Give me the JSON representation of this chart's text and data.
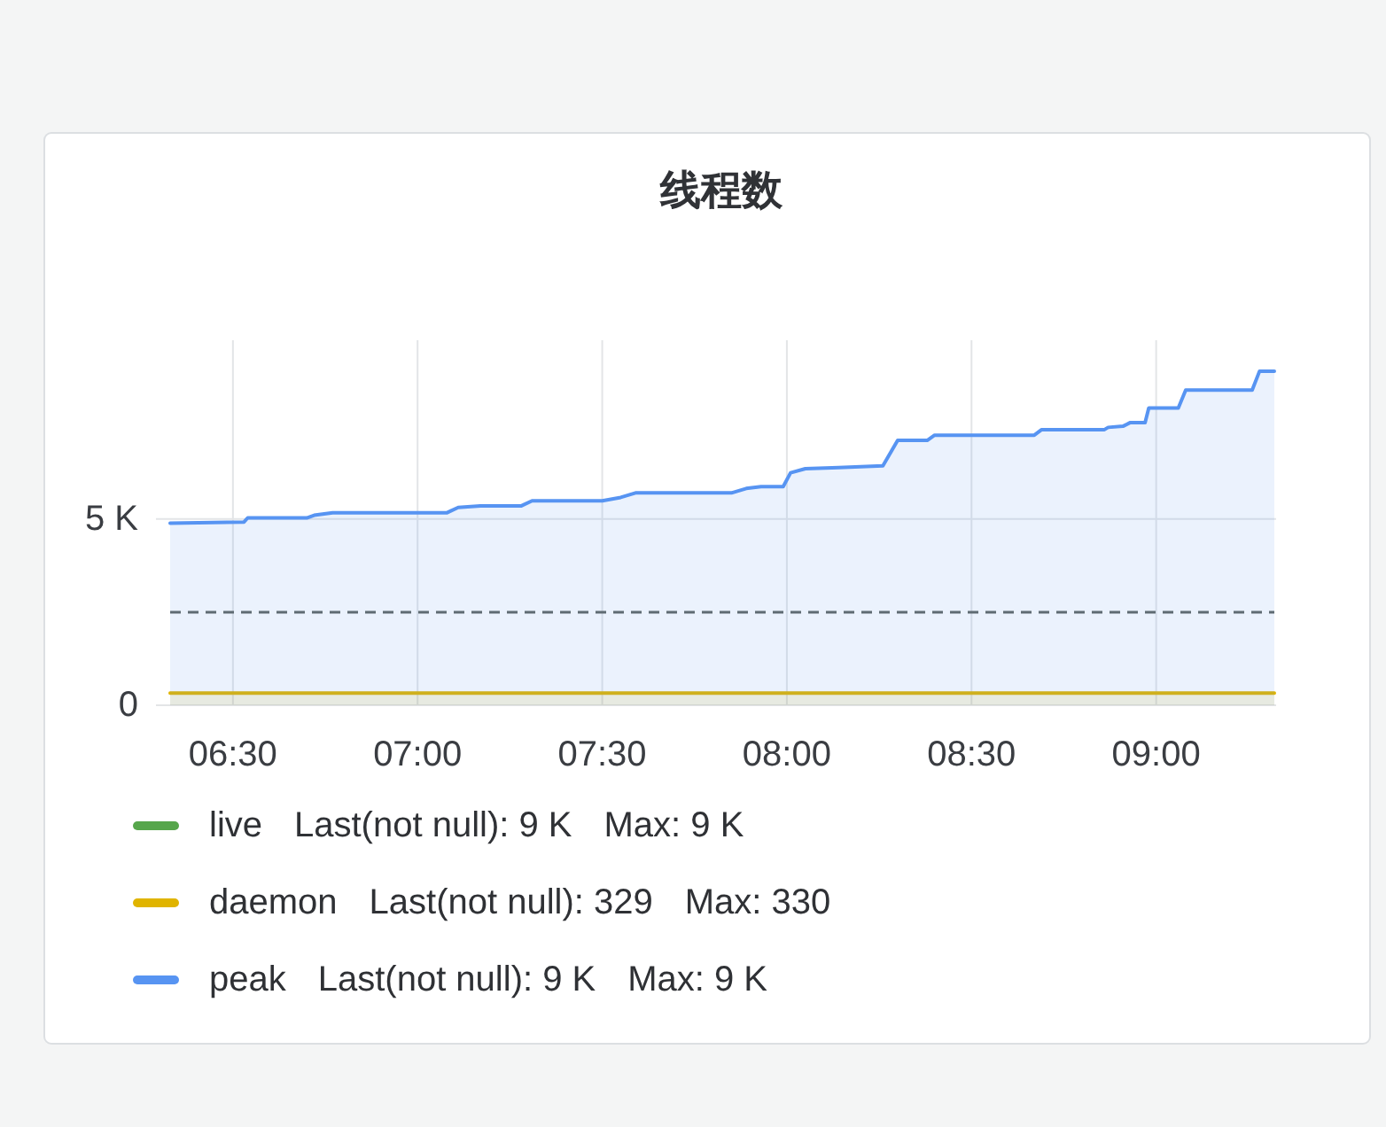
{
  "chart_data": {
    "type": "area",
    "title": "线程数",
    "x": [
      6.33,
      6.53,
      6.54,
      6.7,
      6.72,
      6.77,
      7.08,
      7.11,
      7.17,
      7.28,
      7.31,
      7.5,
      7.55,
      7.59,
      7.85,
      7.89,
      7.93,
      7.99,
      8.01,
      8.05,
      8.14,
      8.26,
      8.3,
      8.38,
      8.4,
      8.67,
      8.69,
      8.86,
      8.87,
      8.91,
      8.93,
      8.97,
      8.98,
      9.06,
      9.08,
      9.26,
      9.28,
      9.32
    ],
    "series": [
      {
        "name": "live",
        "color": "#56a64b",
        "values": [
          null,
          null,
          null,
          null,
          null,
          null,
          null,
          null,
          null,
          null,
          null,
          null,
          null,
          null,
          null,
          null,
          null,
          null,
          null,
          null,
          null,
          null,
          null,
          null,
          null,
          null,
          null,
          null,
          null,
          null,
          null,
          null,
          null,
          null,
          null,
          null,
          null,
          null
        ]
      },
      {
        "name": "daemon",
        "color": "#e0b400",
        "x": [
          6.33,
          9.32
        ],
        "values": [
          330,
          329
        ]
      },
      {
        "name": "peak",
        "color": "#5794f2",
        "values": [
          4890,
          4920,
          5030,
          5030,
          5100,
          5170,
          5170,
          5310,
          5350,
          5350,
          5490,
          5490,
          5580,
          5700,
          5700,
          5820,
          5870,
          5870,
          6240,
          6350,
          6380,
          6430,
          7110,
          7110,
          7250,
          7250,
          7400,
          7400,
          7460,
          7490,
          7590,
          7590,
          7980,
          7980,
          8460,
          8460,
          8970,
          8970
        ]
      }
    ],
    "xlim": [
      6.33,
      9.32
    ],
    "xticks": [
      {
        "value": 6.5,
        "label": "06:30"
      },
      {
        "value": 7,
        "label": "07:00"
      },
      {
        "value": 7.5,
        "label": "07:30"
      },
      {
        "value": 8,
        "label": "08:00"
      },
      {
        "value": 8.5,
        "label": "08:30"
      },
      {
        "value": 9,
        "label": "09:00"
      }
    ],
    "ylim": [
      0,
      9800
    ],
    "yticks": [
      0,
      {
        "value": 5000,
        "label": "5 K"
      }
    ],
    "ref_lines": [
      {
        "axis": "y",
        "value": 2500,
        "color": "#5f6b73",
        "line_style": "dashed"
      }
    ],
    "grid": true,
    "legend": "bottom",
    "annotations": [
      "Last(not null): 9 K",
      "Max: 9 K",
      "Last(not null): 329",
      "Max: 330",
      "Last(not null): 9 K",
      "Max: 9 K"
    ]
  }
}
